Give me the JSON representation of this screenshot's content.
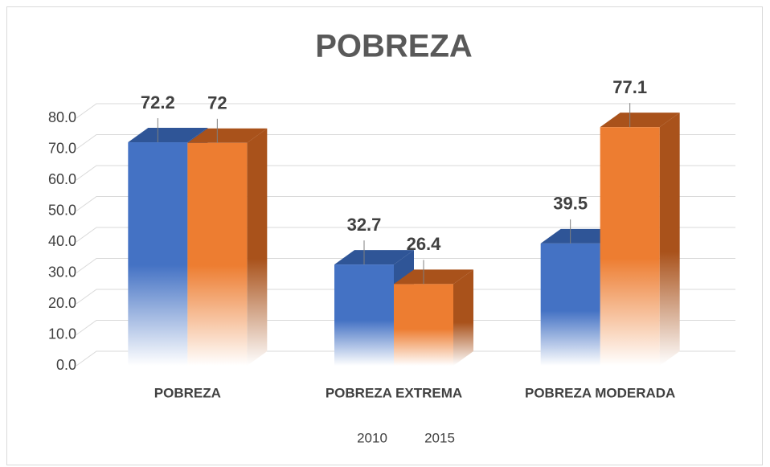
{
  "chart_data": {
    "type": "bar3d",
    "title": "POBREZA",
    "categories": [
      "POBREZA",
      "POBREZA EXTREMA",
      "POBREZA MODERADA"
    ],
    "series": [
      {
        "name": "2010",
        "color": "#4472c4",
        "side_color": "#2f5597",
        "values": [
          72.2,
          32.7,
          39.5
        ]
      },
      {
        "name": "2015",
        "color": "#ed7d31",
        "side_color": "#a9521b",
        "values": [
          72,
          26.4,
          77.1
        ]
      }
    ],
    "ylim": [
      0,
      80
    ],
    "yticks": [
      {
        "value": 0,
        "label": "0.0"
      },
      {
        "value": 10,
        "label": "10.0"
      },
      {
        "value": 20,
        "label": "20.0"
      },
      {
        "value": 30,
        "label": "30.0"
      },
      {
        "value": 40,
        "label": "40.0"
      },
      {
        "value": 50,
        "label": "50.0"
      },
      {
        "value": 60,
        "label": "60.0"
      },
      {
        "value": 70,
        "label": "70.0"
      },
      {
        "value": 80,
        "label": "80.0"
      }
    ],
    "grid": true,
    "legend": "bottom"
  }
}
